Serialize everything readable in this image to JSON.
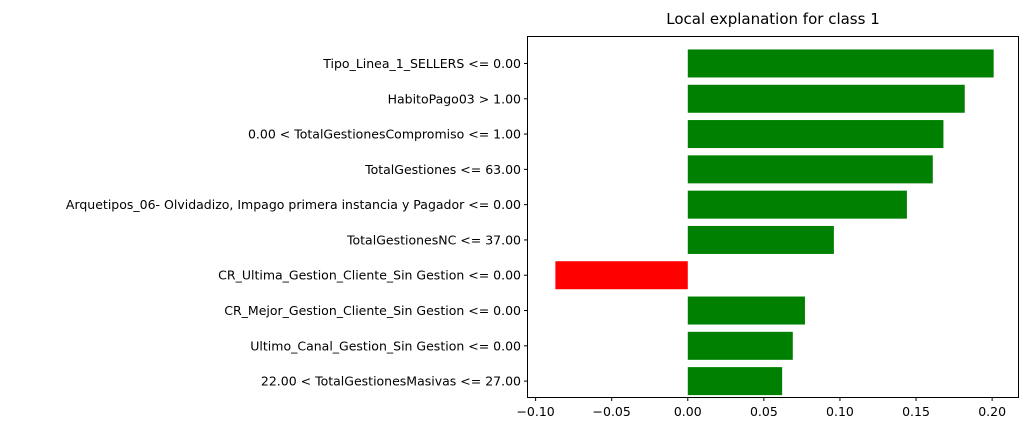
{
  "chart_data": {
    "type": "bar",
    "orientation": "horizontal",
    "title": "Local explanation for class 1",
    "xlabel": "",
    "ylabel": "",
    "xlim": [
      -0.105,
      0.217
    ],
    "xticks": [
      -0.1,
      -0.05,
      0.0,
      0.05,
      0.1,
      0.15,
      0.2
    ],
    "xtick_labels": [
      "−0.10",
      "−0.05",
      "0.00",
      "0.05",
      "0.10",
      "0.15",
      "0.20"
    ],
    "grid": false,
    "positive_color": "#008000",
    "negative_color": "#ff0000",
    "categories": [
      "Tipo_Linea_1_SELLERS <= 0.00",
      "HabitoPago03 > 1.00",
      "0.00 < TotalGestionesCompromiso <= 1.00",
      "TotalGestiones <= 63.00",
      "Arquetipos_06- Olvidadizo, Impago primera instancia y Pagador <= 0.00",
      "TotalGestionesNC <= 37.00",
      "CR_Ultima_Gestion_Cliente_Sin Gestion <= 0.00",
      "CR_Mejor_Gestion_Cliente_Sin Gestion <= 0.00",
      "Ultimo_Canal_Gestion_Sin Gestion <= 0.00",
      "22.00 < TotalGestionesMasivas <= 27.00"
    ],
    "values": [
      0.201,
      0.182,
      0.168,
      0.161,
      0.144,
      0.096,
      -0.087,
      0.077,
      0.069,
      0.062
    ]
  }
}
